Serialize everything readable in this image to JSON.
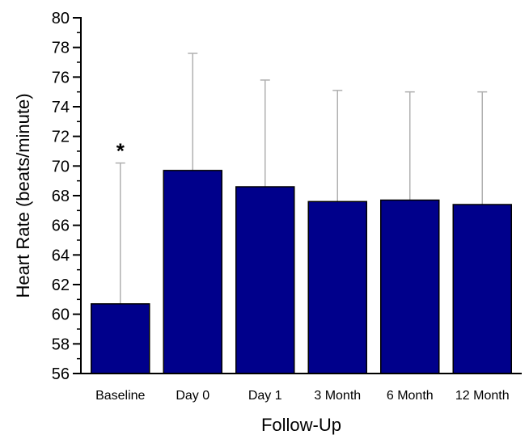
{
  "chart_data": {
    "type": "bar",
    "categories": [
      "Baseline",
      "Day 0",
      "Day 1",
      "3 Month",
      "6 Month",
      "12 Month"
    ],
    "values": [
      60.7,
      69.7,
      68.6,
      67.6,
      67.7,
      67.4
    ],
    "error_upper": [
      70.2,
      77.6,
      75.8,
      75.1,
      75.0,
      75.0
    ],
    "annotations": [
      {
        "category": "Baseline",
        "text": "*"
      }
    ],
    "xlabel": "Follow-Up",
    "ylabel": "Heart Rate (beats/minute)",
    "ylim": [
      56,
      80
    ],
    "yticks": [
      56,
      58,
      60,
      62,
      64,
      66,
      68,
      70,
      72,
      74,
      76,
      78,
      80
    ],
    "grid": false,
    "bar_color": "#00008B",
    "error_color": "#b0b0b0"
  }
}
